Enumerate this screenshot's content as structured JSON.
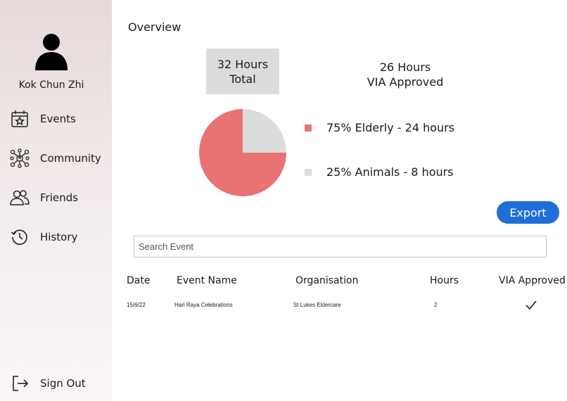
{
  "user": {
    "name": "Kok Chun Zhi"
  },
  "sidebar": {
    "items": [
      {
        "label": "Events",
        "icon": "calendar-star-icon"
      },
      {
        "label": "Community",
        "icon": "network-icon"
      },
      {
        "label": "Friends",
        "icon": "users-icon"
      },
      {
        "label": "History",
        "icon": "history-icon"
      }
    ],
    "sign_out": {
      "label": "Sign Out",
      "icon": "sign-out-icon"
    }
  },
  "overview": {
    "title": "Overview",
    "total_line1": "32 Hours",
    "total_line2": "Total",
    "approved_line1": "26 Hours",
    "approved_line2": "VIA Approved"
  },
  "breakdown": {
    "items": [
      {
        "label": "75% Elderly - 24 hours",
        "percent": 75,
        "color": "#e97272"
      },
      {
        "label": "25% Animals - 8 hours",
        "percent": 25,
        "color": "#dcdcdc"
      }
    ]
  },
  "export_label": "Export",
  "search": {
    "placeholder": "Search Event"
  },
  "table": {
    "headers": [
      "Date",
      "Event Name",
      "Organisation",
      "Hours",
      "VIA Approved"
    ],
    "rows": [
      {
        "date": "15/6/22",
        "event": "Hari Raya Celebrations",
        "organisation": "St Lukes Eldercare",
        "hours": "2",
        "approved": true
      }
    ]
  },
  "colors": {
    "accent": "#1f6ed8",
    "elderly": "#e97272",
    "animals": "#dcdcdc"
  }
}
